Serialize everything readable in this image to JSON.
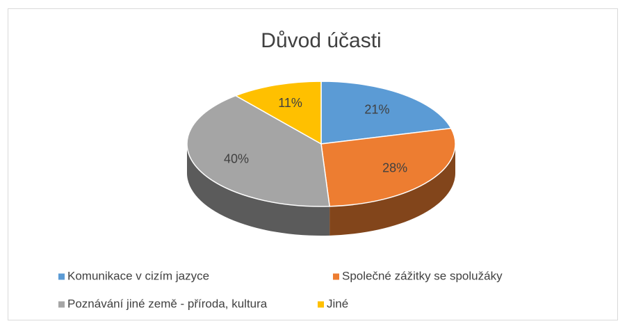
{
  "chart_data": {
    "type": "pie",
    "title": "Důvod účasti",
    "categories": [
      "Komunikace v cizím jazyce",
      "Společné zážitky se spolužáky",
      "Poznávání jiné země - příroda, kultura",
      "Jiné"
    ],
    "values": [
      21,
      28,
      40,
      11
    ],
    "value_labels": [
      "21%",
      "28%",
      "40%",
      "11%"
    ],
    "colors": [
      "#5b9bd5",
      "#ed7d31",
      "#a5a5a5",
      "#ffc000"
    ],
    "legend": "bottom"
  }
}
